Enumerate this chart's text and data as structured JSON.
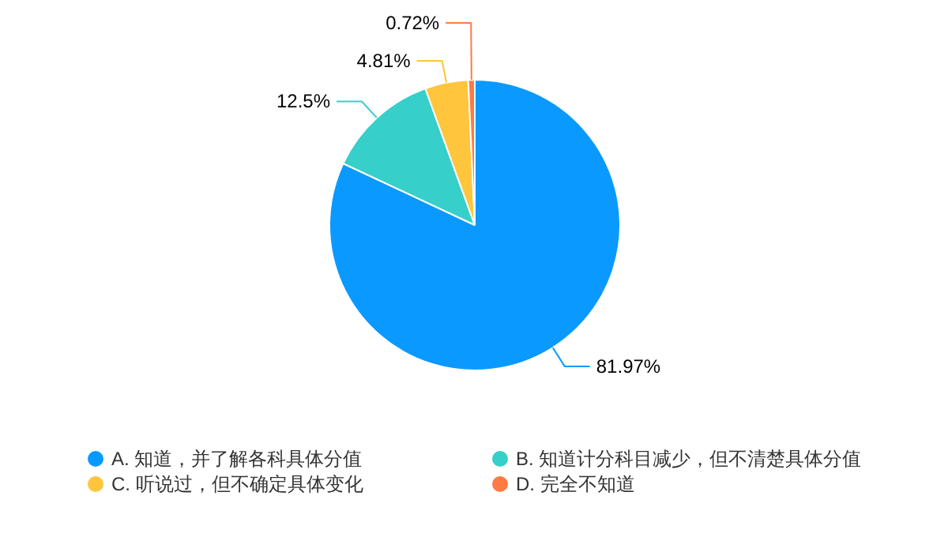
{
  "chart_data": {
    "type": "pie",
    "categories": [
      "A. 知道，并了解各科具体分值",
      "B. 知道计分科目减少，但不清楚具体分值",
      "C. 听说过，但不确定具体变化",
      "D. 完全不知道"
    ],
    "values": [
      81.97,
      12.5,
      4.81,
      0.72
    ],
    "colors": [
      "#0a99ff",
      "#36cfc9",
      "#ffc53d",
      "#ff7a45"
    ],
    "value_labels": [
      "81.97%",
      "12.5%",
      "4.81%",
      "0.72%"
    ],
    "legend": "bottom"
  }
}
